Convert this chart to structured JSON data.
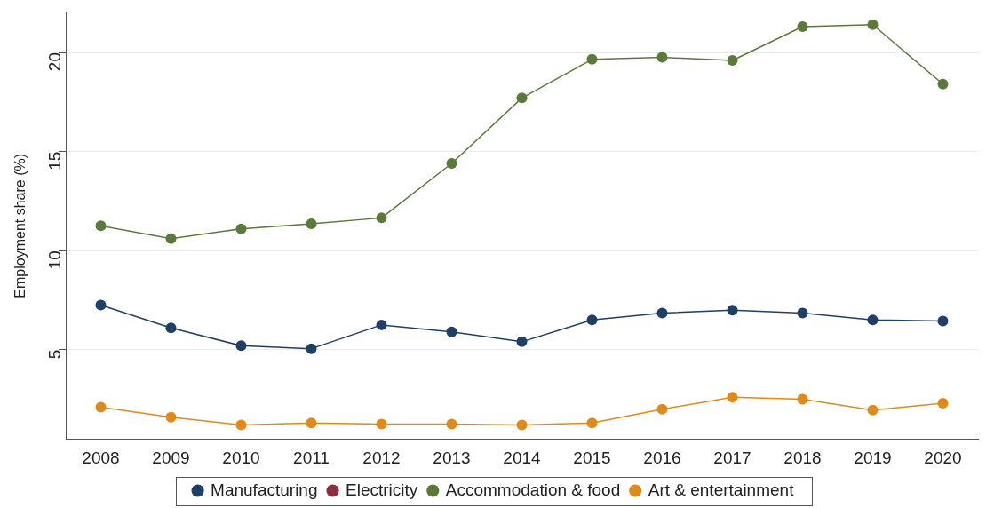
{
  "chart_data": {
    "type": "line",
    "ylabel": "Employment share (%)",
    "categories": [
      "2008",
      "2009",
      "2010",
      "2011",
      "2012",
      "2013",
      "2014",
      "2015",
      "2016",
      "2017",
      "2018",
      "2019",
      "2020"
    ],
    "series": [
      {
        "name": "Manufacturing",
        "color": "#1f3f66",
        "values": [
          7.25,
          6.1,
          5.2,
          5.05,
          6.25,
          5.9,
          5.4,
          6.5,
          6.85,
          7.0,
          6.85,
          6.5,
          6.45
        ]
      },
      {
        "name": "Electricity",
        "color": "#8b2e3f",
        "values": [
          null,
          null,
          null,
          null,
          null,
          null,
          null,
          null,
          null,
          null,
          null,
          null,
          null
        ]
      },
      {
        "name": "Accommodation & food",
        "color": "#5a7a3a",
        "values": [
          11.25,
          10.6,
          11.1,
          11.35,
          11.65,
          14.4,
          17.7,
          19.65,
          19.75,
          19.6,
          21.3,
          21.4,
          18.4
        ]
      },
      {
        "name": "Art & entertainment",
        "color": "#e08a1a",
        "values": [
          2.1,
          1.6,
          1.2,
          1.3,
          1.25,
          1.25,
          1.2,
          1.3,
          2.0,
          2.6,
          2.5,
          1.95,
          2.3
        ]
      }
    ],
    "ylim": [
      0.5,
      22
    ],
    "yticks": [
      5,
      10,
      15,
      20
    ],
    "grid": "y",
    "legend": "bottom",
    "marker": "circle",
    "line_style": "solid"
  }
}
